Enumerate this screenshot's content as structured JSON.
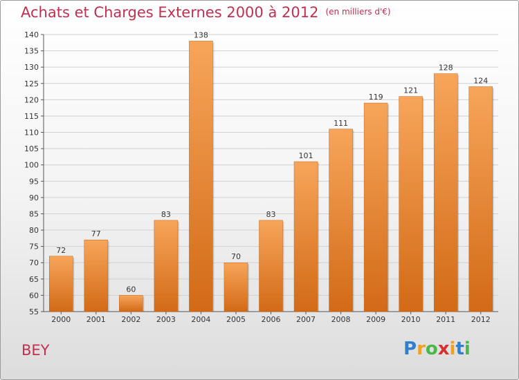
{
  "header": {
    "title": "Achats et Charges Externes 2000 à 2012",
    "unit": "(en milliers d'€)"
  },
  "footer": {
    "place": "BEY",
    "brand_letters": [
      "P",
      "r",
      "o",
      "x",
      "i",
      "t",
      "i"
    ],
    "brand_colors": [
      "#2e7fd1",
      "#f0a020",
      "#4ab848",
      "#d83030",
      "#f0a020",
      "#2e7fd1",
      "#4ab848"
    ]
  },
  "colors": {
    "bar_light": "#f7a55a",
    "bar_dark": "#d26a16",
    "text": "#c03050"
  },
  "chart_data": {
    "type": "bar",
    "categories": [
      "2000",
      "2001",
      "2002",
      "2003",
      "2004",
      "2005",
      "2006",
      "2007",
      "2008",
      "2009",
      "2010",
      "2011",
      "2012"
    ],
    "values": [
      72,
      77,
      60,
      83,
      138,
      70,
      83,
      101,
      111,
      119,
      121,
      128,
      124
    ],
    "ylim": [
      55,
      140
    ],
    "yticks": [
      55,
      60,
      65,
      70,
      75,
      80,
      85,
      90,
      95,
      100,
      105,
      110,
      115,
      120,
      125,
      130,
      135,
      140
    ],
    "grid": true
  }
}
